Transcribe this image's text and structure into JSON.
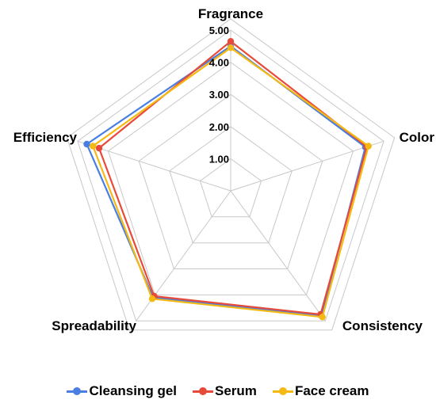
{
  "chart_data": {
    "type": "radar",
    "axes": [
      "Fragrance",
      "Color",
      "Consistency",
      "Spreadability",
      "Efficiency"
    ],
    "range": [
      0,
      5
    ],
    "ticks": [
      "1.00",
      "2.00",
      "3.00",
      "4.00",
      "5.00"
    ],
    "grid": true,
    "legend_position": "bottom",
    "series": [
      {
        "name": "Cleansing gel",
        "color": "#4A7EE0",
        "values": [
          4.5,
          4.4,
          4.8,
          4.1,
          4.7
        ]
      },
      {
        "name": "Serum",
        "color": "#E84A3A",
        "values": [
          4.65,
          4.45,
          4.75,
          4.05,
          4.3
        ]
      },
      {
        "name": "Face cream",
        "color": "#F5B914",
        "values": [
          4.45,
          4.5,
          4.85,
          4.15,
          4.5
        ]
      }
    ]
  }
}
